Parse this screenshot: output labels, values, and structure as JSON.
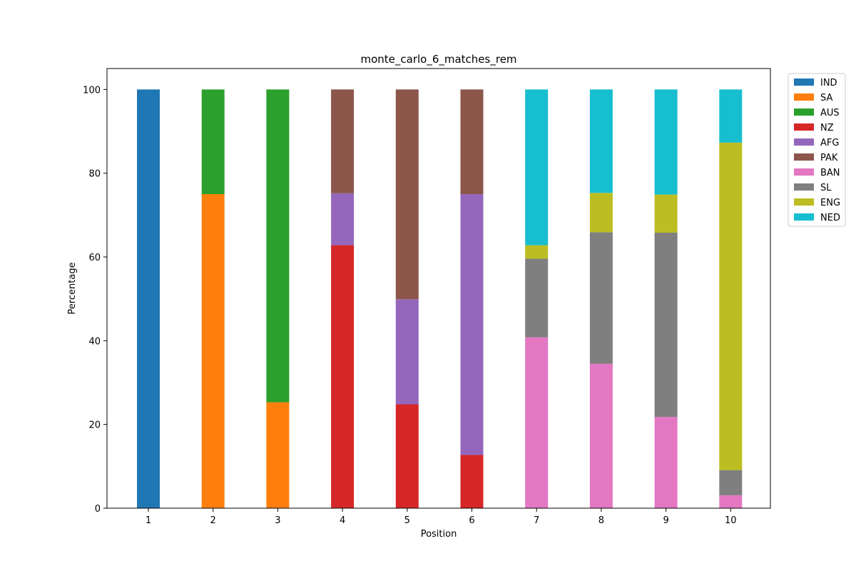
{
  "chart_data": {
    "type": "bar",
    "stacked": true,
    "title": "monte_carlo_6_matches_rem",
    "xlabel": "Position",
    "ylabel": "Percentage",
    "categories": [
      "1",
      "2",
      "3",
      "4",
      "5",
      "6",
      "7",
      "8",
      "9",
      "10"
    ],
    "ylim": [
      0,
      105
    ],
    "yticks": [
      0,
      20,
      40,
      60,
      80,
      100
    ],
    "legend_position": "outside-top-right",
    "grid": false,
    "series": [
      {
        "name": "IND",
        "color": "#1f77b4",
        "values": [
          100,
          0,
          0,
          0,
          0,
          0,
          0,
          0,
          0,
          0
        ]
      },
      {
        "name": "SA",
        "color": "#ff7f0e",
        "values": [
          0,
          75,
          25.3,
          0,
          0,
          0,
          0,
          0,
          0,
          0
        ]
      },
      {
        "name": "AUS",
        "color": "#2ca02c",
        "values": [
          0,
          25,
          74.7,
          0,
          0,
          0,
          0,
          0,
          0,
          0
        ]
      },
      {
        "name": "NZ",
        "color": "#d62728",
        "values": [
          0,
          0,
          0,
          62.8,
          24.8,
          12.7,
          0,
          0,
          0,
          0
        ]
      },
      {
        "name": "AFG",
        "color": "#9467bd",
        "values": [
          0,
          0,
          0,
          12.4,
          25.1,
          62.3,
          0,
          0,
          0,
          0
        ]
      },
      {
        "name": "PAK",
        "color": "#8c564b",
        "values": [
          0,
          0,
          0,
          24.8,
          50.1,
          25.0,
          0,
          0,
          0,
          0
        ]
      },
      {
        "name": "BAN",
        "color": "#e377c2",
        "values": [
          0,
          0,
          0,
          0,
          0,
          0,
          40.8,
          34.5,
          21.8,
          3.1
        ]
      },
      {
        "name": "SL",
        "color": "#7f7f7f",
        "values": [
          0,
          0,
          0,
          0,
          0,
          0,
          18.8,
          31.4,
          44.0,
          6.0
        ]
      },
      {
        "name": "ENG",
        "color": "#bcbd22",
        "values": [
          0,
          0,
          0,
          0,
          0,
          0,
          3.2,
          9.4,
          9.1,
          78.2
        ]
      },
      {
        "name": "NED",
        "color": "#17becf",
        "values": [
          0,
          0,
          0,
          0,
          0,
          0,
          37.2,
          24.7,
          25.1,
          12.7
        ]
      }
    ]
  }
}
